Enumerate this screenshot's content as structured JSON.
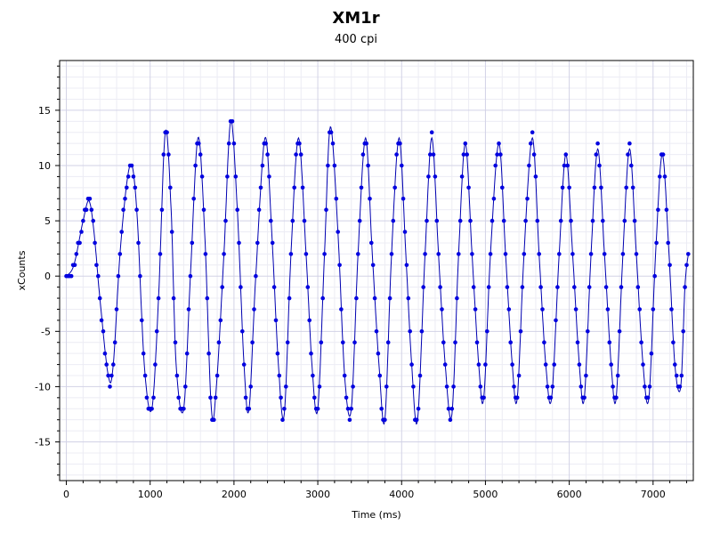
{
  "chart_data": {
    "type": "scatter",
    "title": "XM1r",
    "subtitle": "400 cpi",
    "xlabel": "Time (ms)",
    "ylabel": "xCounts",
    "xlim": [
      -80,
      7480
    ],
    "ylim": [
      -18.5,
      19.5
    ],
    "xticks": [
      0,
      1000,
      2000,
      3000,
      4000,
      5000,
      6000,
      7000
    ],
    "yticks": [
      -15,
      -10,
      -5,
      0,
      5,
      10,
      15
    ],
    "grid": true,
    "legend": "none",
    "point_color": "#0000e0",
    "line_color": "#0000b0",
    "series": [
      {
        "markers": true,
        "line": "smoothed",
        "key_points": [
          [
            0,
            0
          ],
          [
            90,
            1
          ],
          [
            200,
            5
          ],
          [
            270,
            6.8
          ],
          [
            330,
            4
          ],
          [
            400,
            -2
          ],
          [
            500,
            -9
          ],
          [
            560,
            -8
          ],
          [
            650,
            3
          ],
          [
            760,
            10
          ],
          [
            840,
            6
          ],
          [
            930,
            -8
          ],
          [
            1020,
            -12
          ],
          [
            1100,
            -2
          ],
          [
            1180,
            13
          ],
          [
            1250,
            6
          ],
          [
            1310,
            -8
          ],
          [
            1400,
            -12
          ],
          [
            1480,
            0
          ],
          [
            1570,
            12.5
          ],
          [
            1650,
            4
          ],
          [
            1730,
            -12
          ],
          [
            1790,
            -10
          ],
          [
            1880,
            2
          ],
          [
            1960,
            14
          ],
          [
            2040,
            6
          ],
          [
            2120,
            -8
          ],
          [
            2180,
            -12
          ],
          [
            2260,
            0
          ],
          [
            2370,
            12.5
          ],
          [
            2450,
            4
          ],
          [
            2530,
            -8
          ],
          [
            2600,
            -12.5
          ],
          [
            2680,
            2
          ],
          [
            2770,
            12.5
          ],
          [
            2860,
            2
          ],
          [
            2930,
            -8
          ],
          [
            3000,
            -12
          ],
          [
            3080,
            2
          ],
          [
            3150,
            13.5
          ],
          [
            3240,
            4
          ],
          [
            3320,
            -9
          ],
          [
            3400,
            -12
          ],
          [
            3480,
            2
          ],
          [
            3570,
            12.5
          ],
          [
            3650,
            2
          ],
          [
            3730,
            -8
          ],
          [
            3800,
            -13
          ],
          [
            3880,
            2
          ],
          [
            3970,
            12.5
          ],
          [
            4050,
            2
          ],
          [
            4120,
            -8
          ],
          [
            4190,
            -13
          ],
          [
            4280,
            2
          ],
          [
            4360,
            12.5
          ],
          [
            4440,
            2
          ],
          [
            4520,
            -8
          ],
          [
            4600,
            -12.5
          ],
          [
            4680,
            2
          ],
          [
            4760,
            12
          ],
          [
            4840,
            2
          ],
          [
            4920,
            -8
          ],
          [
            4980,
            -11
          ],
          [
            5060,
            2
          ],
          [
            5160,
            12
          ],
          [
            5240,
            2
          ],
          [
            5320,
            -8
          ],
          [
            5380,
            -11
          ],
          [
            5460,
            2
          ],
          [
            5560,
            12.5
          ],
          [
            5640,
            2
          ],
          [
            5720,
            -8
          ],
          [
            5790,
            -11
          ],
          [
            5880,
            2
          ],
          [
            5960,
            11
          ],
          [
            6040,
            2
          ],
          [
            6120,
            -8
          ],
          [
            6180,
            -11
          ],
          [
            6260,
            2
          ],
          [
            6340,
            11.5
          ],
          [
            6420,
            2
          ],
          [
            6500,
            -8
          ],
          [
            6560,
            -11
          ],
          [
            6640,
            2
          ],
          [
            6720,
            11.5
          ],
          [
            6800,
            2
          ],
          [
            6880,
            -8
          ],
          [
            6950,
            -11
          ],
          [
            7030,
            2
          ],
          [
            7110,
            11
          ],
          [
            7190,
            2
          ],
          [
            7260,
            -8
          ],
          [
            7330,
            -10
          ],
          [
            7380,
            -1
          ],
          [
            7420,
            2
          ]
        ]
      }
    ]
  }
}
